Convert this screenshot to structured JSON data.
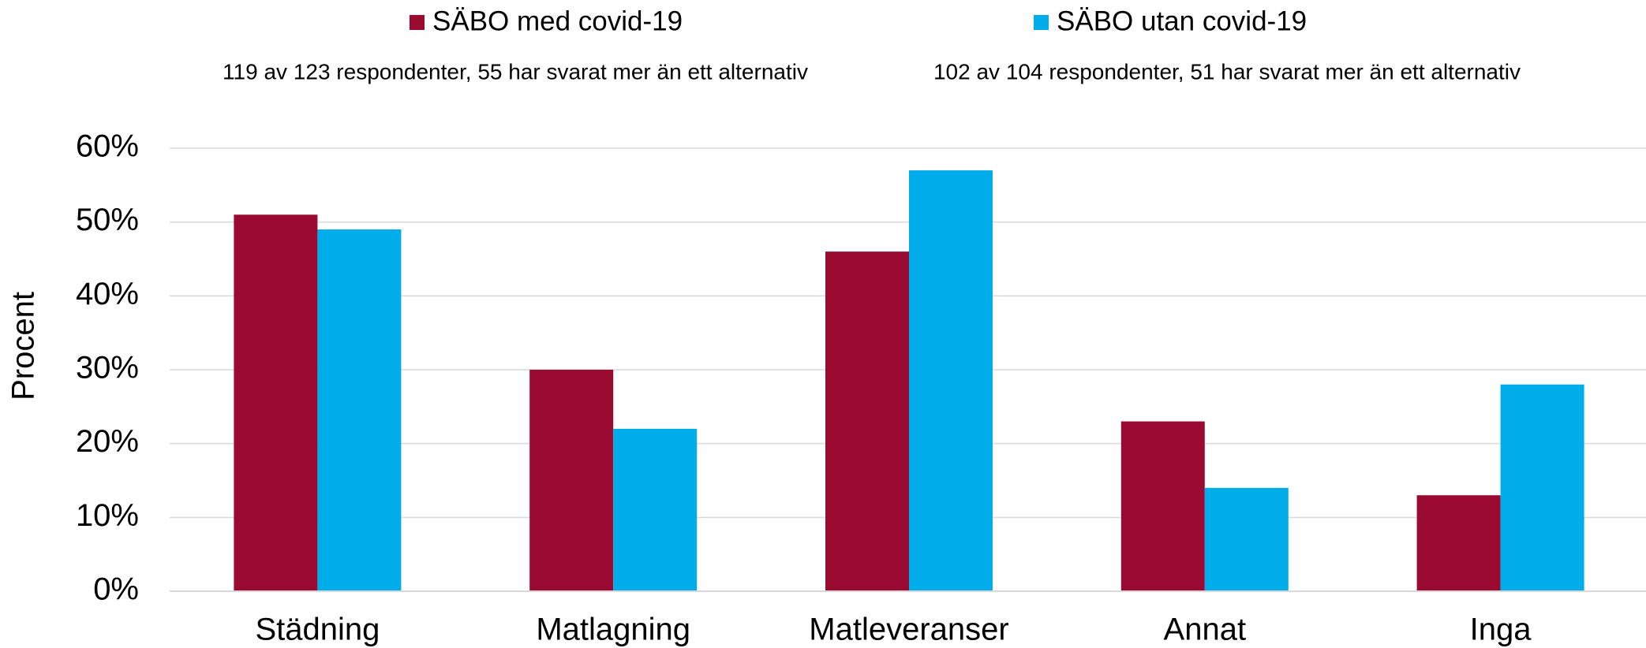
{
  "chart_data": {
    "type": "bar",
    "y_label": "Procent",
    "categories": [
      "Städning",
      "Matlagning",
      "Matleveranser",
      "Annat",
      "Inga"
    ],
    "series": [
      {
        "name": "SÄBO med covid-19",
        "subtitle": "119 av 123 respondenter, 55 har svarat mer än ett alternativ",
        "color": "#9b0a31",
        "values": [
          51,
          30,
          46,
          23,
          13
        ]
      },
      {
        "name": "SÄBO utan covid-19",
        "subtitle": "102 av 104 respondenter, 51 har svarat mer än ett alternativ",
        "color": "#00adeb",
        "values": [
          49,
          22,
          57,
          14,
          28
        ]
      }
    ],
    "ylim": [
      0,
      60
    ],
    "yticks": [
      {
        "value": 0,
        "label": "0%"
      },
      {
        "value": 10,
        "label": "10%"
      },
      {
        "value": 20,
        "label": "20%"
      },
      {
        "value": 30,
        "label": "30%"
      },
      {
        "value": 40,
        "label": "40%"
      },
      {
        "value": 50,
        "label": "50%"
      },
      {
        "value": 60,
        "label": "60%"
      }
    ],
    "grid": true,
    "legend": "top"
  }
}
